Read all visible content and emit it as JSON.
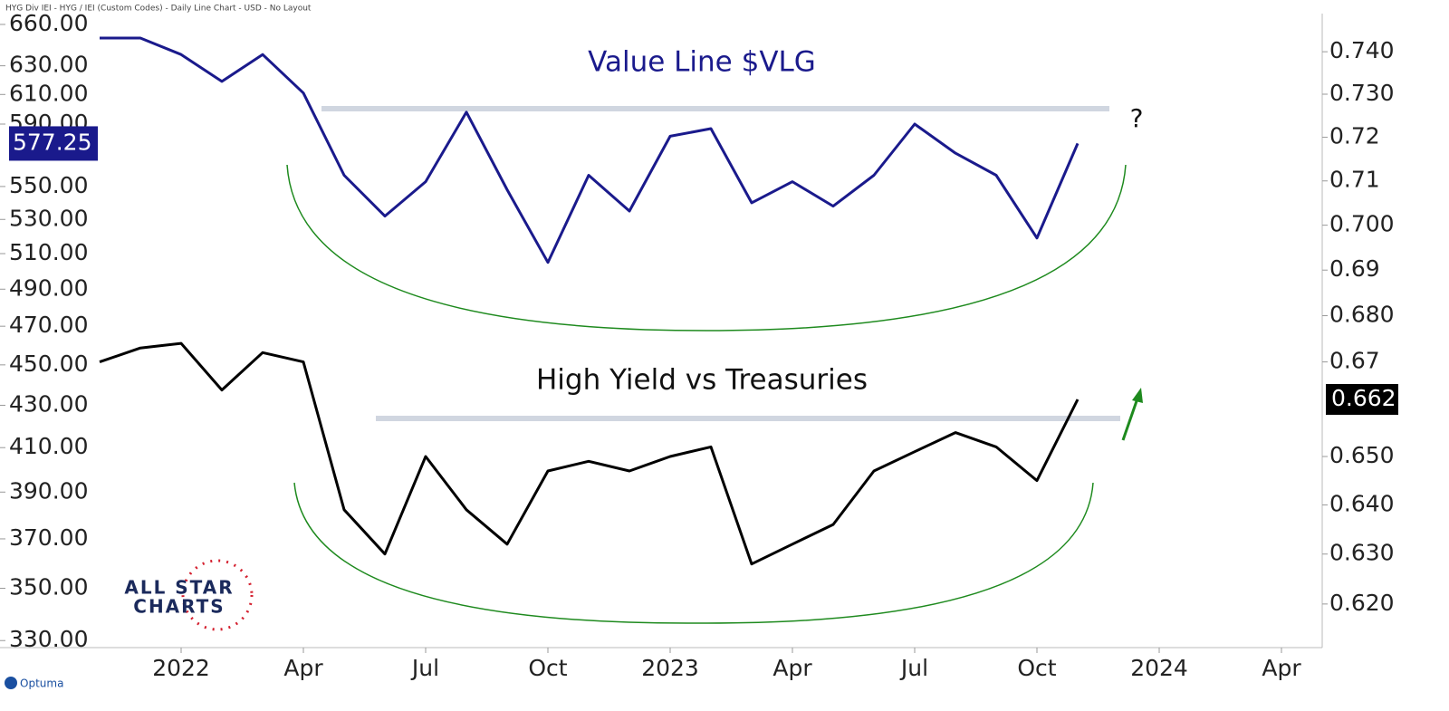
{
  "chart_data": {
    "type": "line",
    "header": "HYG Div IEI - HYG / IEI (Custom Codes) - Daily Line Chart - USD - No Layout",
    "annotations": [
      "Value Line $VLG",
      "High Yield vs Treasuries",
      "?"
    ],
    "logo": [
      "ALL STAR",
      "CHARTS"
    ],
    "brand": "Optuma",
    "x": [
      "2021-11",
      "2021-12",
      "2022-01",
      "2022-02",
      "2022-03",
      "2022-04",
      "2022-05",
      "2022-06",
      "2022-07",
      "2022-08",
      "2022-09",
      "2022-10",
      "2022-11",
      "2022-12",
      "2023-01",
      "2023-02",
      "2023-03",
      "2023-04",
      "2023-05",
      "2023-06",
      "2023-07",
      "2023-08",
      "2023-09",
      "2023-10",
      "2023-11"
    ],
    "xlim": [
      "2021-09",
      "2024-05"
    ],
    "xticks": [
      {
        "value": "2022-01",
        "label": "2022"
      },
      {
        "value": "2022-04",
        "label": "Apr"
      },
      {
        "value": "2022-07",
        "label": "Jul"
      },
      {
        "value": "2022-10",
        "label": "Oct"
      },
      {
        "value": "2023-01",
        "label": "2023"
      },
      {
        "value": "2023-04",
        "label": "Apr"
      },
      {
        "value": "2023-07",
        "label": "Jul"
      },
      {
        "value": "2023-10",
        "label": "Oct"
      },
      {
        "value": "2024-01",
        "label": "2024"
      },
      {
        "value": "2024-04",
        "label": "Apr"
      }
    ],
    "ylog": true,
    "ylim": [
      327.4,
      668.1
    ],
    "yticks": [
      {
        "value": 660,
        "label": "660.00"
      },
      {
        "value": 630,
        "label": "630.00"
      },
      {
        "value": 610,
        "label": "610.00"
      },
      {
        "value": 590,
        "label": "590.00"
      },
      {
        "value": 550,
        "label": "550.00"
      },
      {
        "value": 530,
        "label": "530.00"
      },
      {
        "value": 510,
        "label": "510.00"
      },
      {
        "value": 490,
        "label": "490.00"
      },
      {
        "value": 470,
        "label": "470.00"
      },
      {
        "value": 450,
        "label": "450.00"
      },
      {
        "value": 430,
        "label": "430.00"
      },
      {
        "value": 410,
        "label": "410.00"
      },
      {
        "value": 390,
        "label": "390.00"
      },
      {
        "value": 370,
        "label": "370.00"
      },
      {
        "value": 350,
        "label": "350.00"
      },
      {
        "value": 330,
        "label": "330.00"
      }
    ],
    "y2lim": [
      0.6114,
      0.7491
    ],
    "y2ticks": [
      {
        "value": 0.74,
        "label": "0.740"
      },
      {
        "value": 0.73,
        "label": "0.730"
      },
      0.72,
      0.71,
      {
        "value": 0.7,
        "label": "0.700"
      },
      0.69,
      {
        "value": 0.68,
        "label": "0.680"
      },
      0.67,
      {
        "value": 0.65,
        "label": "0.650"
      },
      {
        "value": 0.64,
        "label": "0.640"
      },
      {
        "value": 0.63,
        "label": "0.630"
      },
      {
        "value": 0.62,
        "label": "0.620"
      }
    ],
    "series": [
      {
        "name": "Value Line $VLG",
        "color": "#1a1a8c",
        "axis": "y",
        "values": [
          650,
          650,
          638,
          619,
          638,
          611,
          557,
          532,
          553,
          598,
          548,
          505,
          557,
          535,
          582,
          587,
          540,
          553,
          538,
          557,
          590,
          571,
          557,
          519,
          577.25
        ]
      },
      {
        "name": "HYG / IEI",
        "color": "#000000",
        "axis": "y2",
        "values": [
          0.67,
          0.673,
          0.674,
          0.664,
          0.672,
          0.67,
          0.639,
          0.63,
          0.65,
          0.639,
          0.632,
          0.647,
          0.649,
          0.647,
          0.65,
          0.652,
          0.628,
          0.632,
          0.636,
          0.647,
          0.651,
          0.655,
          0.652,
          0.645,
          0.662
        ]
      }
    ]
  }
}
